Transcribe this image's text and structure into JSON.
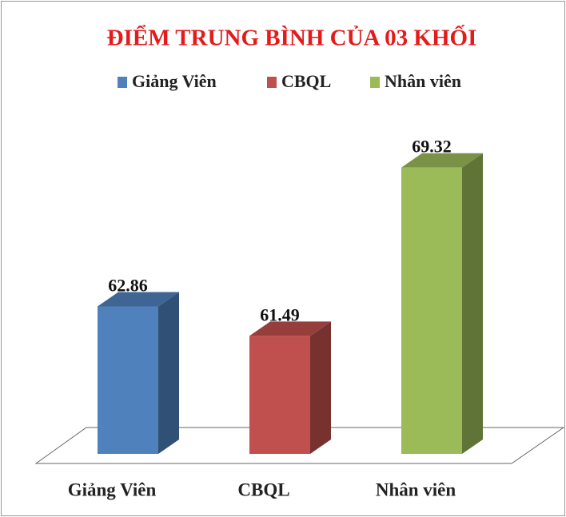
{
  "chart_data": {
    "type": "bar3d",
    "title": "ĐIỂM TRUNG BÌNH CỦA 03 KHỐI",
    "categories": [
      "Giảng Viên",
      "CBQL",
      "Nhân viên"
    ],
    "values": [
      62.86,
      61.49,
      69.32
    ],
    "colors": [
      "#4f81bd",
      "#c0504d",
      "#9bbb59"
    ],
    "ylim": [
      56,
      70
    ],
    "legend": "top"
  }
}
